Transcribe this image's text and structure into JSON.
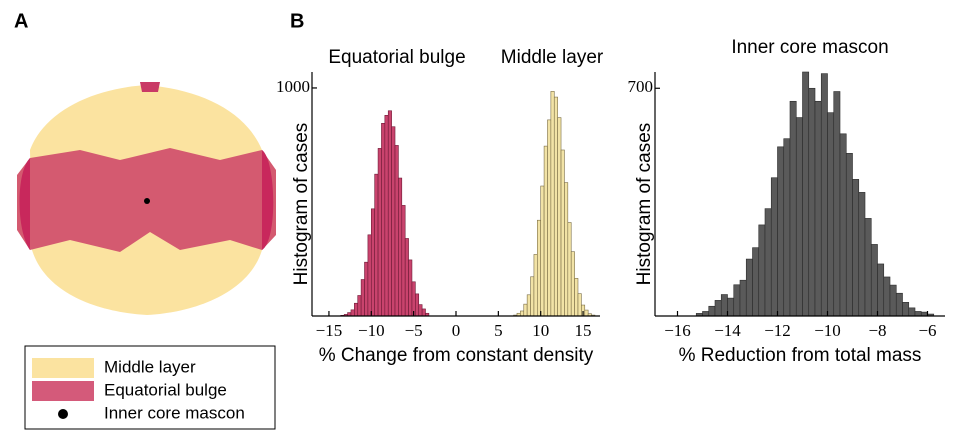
{
  "panel_labels": [
    "A",
    "B"
  ],
  "legend": [
    {
      "label": "Middle layer"
    },
    {
      "label": "Equatorial bulge"
    },
    {
      "label": "Inner core mascon"
    }
  ],
  "chart_data": [
    {
      "type": "histogram",
      "xlabel": "% Change from constant density",
      "ylabel": "Histogram of cases",
      "xlim": [
        -17,
        17
      ],
      "ylim": [
        0,
        1070
      ],
      "xticks": [
        {
          "value": -15,
          "label": "−15"
        },
        {
          "value": -10,
          "label": "−10"
        },
        {
          "value": -5,
          "label": "−5"
        },
        0,
        5,
        10,
        15
      ],
      "yticks": [
        1000
      ],
      "series": [
        {
          "name": "Equatorial bulge",
          "color": "#c9436d",
          "bins": [
            -13.6,
            -13.2,
            -12.8,
            -12.4,
            -12.0,
            -11.6,
            -11.2,
            -10.8,
            -10.4,
            -10.0,
            -9.6,
            -9.2,
            -8.8,
            -8.4,
            -8.0,
            -7.6,
            -7.2,
            -6.8,
            -6.4,
            -6.0,
            -5.6,
            -5.2,
            -4.8,
            -4.4,
            -4.0,
            -3.6,
            -3.2
          ],
          "values": [
            3,
            7,
            15,
            27,
            56,
            90,
            160,
            236,
            356,
            470,
            622,
            735,
            845,
            880,
            900,
            830,
            748,
            605,
            485,
            340,
            246,
            150,
            97,
            50,
            31,
            12
          ]
        },
        {
          "name": "Middle layer",
          "color": "#f2e3a6",
          "bins": [
            6.8,
            7.2,
            7.6,
            8.0,
            8.4,
            8.8,
            9.2,
            9.6,
            10.0,
            10.4,
            10.8,
            11.2,
            11.6,
            12.0,
            12.4,
            12.8,
            13.2,
            13.6,
            14.0,
            14.4,
            14.8,
            15.2,
            15.6,
            16.0,
            16.4
          ],
          "values": [
            4,
            12,
            22,
            52,
            93,
            172,
            270,
            420,
            570,
            745,
            860,
            985,
            960,
            870,
            728,
            585,
            410,
            282,
            165,
            98,
            48,
            26,
            10,
            4
          ]
        }
      ]
    },
    {
      "type": "histogram",
      "title": "Inner core mascon",
      "xlabel": "% Reduction from total mass",
      "ylabel": "Histogram of cases",
      "xlim": [
        -16.9,
        -5.3
      ],
      "ylim": [
        0,
        750
      ],
      "xticks": [
        {
          "value": -16,
          "label": "−16"
        },
        {
          "value": -14,
          "label": "−14"
        },
        {
          "value": -12,
          "label": "−12"
        },
        {
          "value": -10,
          "label": "−10"
        },
        {
          "value": -8,
          "label": "−8"
        },
        {
          "value": -6,
          "label": "−6"
        }
      ],
      "yticks": [
        700
      ],
      "series": [
        {
          "name": "Inner core mascon",
          "color": "#5a5a5a",
          "bins": [
            -15.25,
            -15.0,
            -14.75,
            -14.5,
            -14.25,
            -14.0,
            -13.75,
            -13.5,
            -13.25,
            -13.0,
            -12.75,
            -12.5,
            -12.25,
            -12.0,
            -11.75,
            -11.5,
            -11.25,
            -11.0,
            -10.75,
            -10.5,
            -10.25,
            -10.0,
            -9.75,
            -9.5,
            -9.25,
            -9.0,
            -8.75,
            -8.5,
            -8.25,
            -8.0,
            -7.75,
            -7.5,
            -7.25,
            -7.0,
            -6.75,
            -6.5,
            -6.25,
            -6.0,
            -5.75
          ],
          "values": [
            8,
            14,
            30,
            48,
            66,
            55,
            96,
            110,
            175,
            210,
            280,
            330,
            425,
            520,
            545,
            660,
            610,
            750,
            700,
            660,
            745,
            625,
            690,
            560,
            500,
            420,
            380,
            300,
            220,
            160,
            120,
            95,
            70,
            42,
            25,
            14,
            12,
            6
          ]
        }
      ]
    }
  ]
}
